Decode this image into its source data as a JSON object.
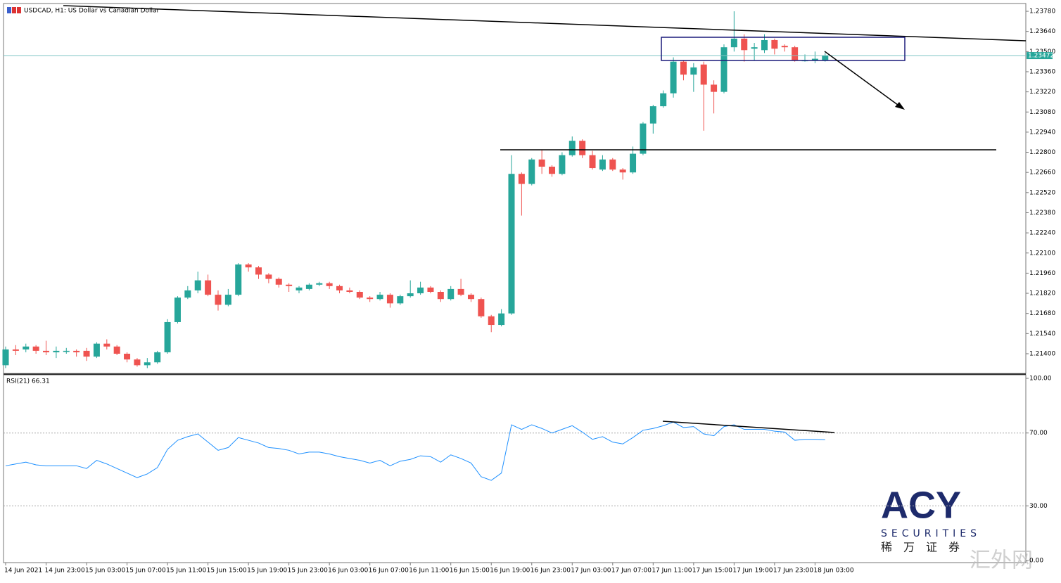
{
  "chart_data": [
    {
      "type": "candlestick",
      "title": "USDCAD, H1:  US Dollar vs Canadian Dollar",
      "categories": [
        "14 Jun 2021",
        null,
        null,
        null,
        "14 Jun 23:00",
        null,
        null,
        null,
        "15 Jun 03:00",
        null,
        null,
        null,
        "15 Jun 07:00",
        null,
        null,
        null,
        "15 Jun 11:00",
        null,
        null,
        null,
        "15 Jun 15:00",
        null,
        null,
        null,
        "15 Jun 19:00",
        null,
        null,
        null,
        "15 Jun 23:00",
        null,
        null,
        null,
        "16 Jun 03:00",
        null,
        null,
        null,
        "16 Jun 07:00",
        null,
        null,
        null,
        "16 Jun 11:00",
        null,
        null,
        null,
        "16 Jun 15:00",
        null,
        null,
        null,
        "16 Jun 19:00",
        null,
        null,
        null,
        "16 Jun 23:00",
        null,
        null,
        null,
        "17 Jun 03:00",
        null,
        null,
        null,
        "17 Jun 07:00",
        null,
        null,
        null,
        "17 Jun 11:00",
        null,
        null,
        null,
        "17 Jun 15:00",
        null,
        null,
        null,
        "17 Jun 19:00",
        null,
        null,
        null,
        "17 Jun 23:00",
        null,
        null,
        null,
        "18 Jun 03:00",
        null
      ],
      "open": [
        1.2132,
        1.2143,
        1.2143,
        1.2145,
        1.2142,
        1.2141,
        1.2142,
        1.2142,
        1.2142,
        1.2138,
        1.2147,
        1.2145,
        1.214,
        1.2136,
        1.2132,
        1.2134,
        1.2141,
        1.2162,
        1.2179,
        1.2184,
        1.2191,
        1.2181,
        1.2174,
        1.2181,
        1.2202,
        1.22,
        1.2195,
        1.2192,
        1.2188,
        1.2184,
        1.2185,
        1.2188,
        1.2189,
        1.2187,
        1.2184,
        1.2183,
        1.2179,
        1.2178,
        1.2181,
        1.2175,
        1.218,
        1.2182,
        1.2186,
        1.2183,
        1.2178,
        1.2185,
        1.2181,
        1.2178,
        1.2166,
        1.216,
        1.2168,
        1.2265,
        1.2258,
        1.2275,
        1.227,
        1.2265,
        1.2278,
        1.2288,
        1.2278,
        1.2268,
        1.2275,
        1.2268,
        1.2266,
        1.2279,
        1.23,
        1.2312,
        1.2321,
        1.2343,
        1.2334,
        1.2341,
        1.2327,
        1.2322,
        1.2353,
        1.2359,
        1.2352,
        1.2351,
        1.2358,
        1.2354,
        1.2353,
        1.2344,
        1.2344,
        1.2344
      ],
      "high": [
        1.2145,
        1.2146,
        1.2147,
        1.2146,
        1.2149,
        1.2145,
        1.2144,
        1.2143,
        1.2144,
        1.2148,
        1.215,
        1.2146,
        1.2141,
        1.2137,
        1.2137,
        1.2142,
        1.2164,
        1.218,
        1.2187,
        1.2197,
        1.2195,
        1.2184,
        1.2185,
        1.2203,
        1.2203,
        1.2201,
        1.2196,
        1.2193,
        1.2189,
        1.2187,
        1.2189,
        1.219,
        1.219,
        1.2188,
        1.2186,
        1.2184,
        1.218,
        1.2183,
        1.2182,
        1.2181,
        1.2191,
        1.219,
        1.2187,
        1.2184,
        1.2187,
        1.2192,
        1.2182,
        1.2179,
        1.2167,
        1.2171,
        1.2278,
        1.2266,
        1.2276,
        1.2282,
        1.2271,
        1.228,
        1.2291,
        1.2289,
        1.2281,
        1.2278,
        1.2276,
        1.2269,
        1.2284,
        1.2301,
        1.2313,
        1.2323,
        1.2346,
        1.2344,
        1.2342,
        1.2343,
        1.233,
        1.2355,
        1.2378,
        1.2362,
        1.2356,
        1.2362,
        1.2359,
        1.2355,
        1.2354,
        1.2348,
        1.235,
        1.2349
      ],
      "low": [
        1.213,
        1.2139,
        1.2141,
        1.214,
        1.2139,
        1.2137,
        1.214,
        1.2138,
        1.2135,
        1.2137,
        1.2143,
        1.2139,
        1.2134,
        1.2131,
        1.213,
        1.2133,
        1.214,
        1.2161,
        1.2178,
        1.2182,
        1.218,
        1.217,
        1.2173,
        1.218,
        1.2197,
        1.2192,
        1.2189,
        1.2186,
        1.2183,
        1.2182,
        1.2184,
        1.2187,
        1.2185,
        1.2182,
        1.2182,
        1.2178,
        1.2176,
        1.2177,
        1.2172,
        1.2174,
        1.2179,
        1.2181,
        1.2182,
        1.2176,
        1.2177,
        1.218,
        1.2176,
        1.2165,
        1.2155,
        1.2159,
        1.2167,
        1.2236,
        1.2257,
        1.2265,
        1.2263,
        1.2264,
        1.2277,
        1.2276,
        1.2268,
        1.2267,
        1.2267,
        1.2261,
        1.2265,
        1.2278,
        1.2293,
        1.2311,
        1.2318,
        1.233,
        1.2322,
        1.2295,
        1.2307,
        1.2321,
        1.235,
        1.2343,
        1.2344,
        1.2349,
        1.2348,
        1.235,
        1.2343,
        1.2343,
        1.2342,
        1.2343
      ],
      "close": [
        1.2143,
        1.2142,
        1.2145,
        1.2142,
        1.2141,
        1.2142,
        1.2142,
        1.2141,
        1.2138,
        1.2147,
        1.2145,
        1.214,
        1.2136,
        1.2132,
        1.2134,
        1.2141,
        1.2162,
        1.2179,
        1.2184,
        1.2191,
        1.2181,
        1.2174,
        1.2181,
        1.2202,
        1.22,
        1.2195,
        1.2192,
        1.2188,
        1.2187,
        1.2186,
        1.2188,
        1.2189,
        1.2187,
        1.2184,
        1.2183,
        1.2179,
        1.2178,
        1.2181,
        1.2175,
        1.218,
        1.2182,
        1.2186,
        1.2183,
        1.2178,
        1.2185,
        1.2181,
        1.2178,
        1.2166,
        1.216,
        1.2168,
        1.2265,
        1.2258,
        1.2275,
        1.227,
        1.2265,
        1.2278,
        1.2288,
        1.2278,
        1.2269,
        1.2275,
        1.2268,
        1.2266,
        1.2279,
        1.23,
        1.2312,
        1.2321,
        1.2343,
        1.2334,
        1.2339,
        1.2327,
        1.2322,
        1.2353,
        1.2359,
        1.2351,
        1.2353,
        1.2358,
        1.2352,
        1.2353,
        1.2344,
        1.2344,
        1.2345,
        1.2347
      ],
      "up_color": "#26a69a",
      "down_color": "#ef5350",
      "ylim": [
        1.21263,
        1.23834
      ],
      "yticks": [
        {
          "value": 1.2378,
          "label": "1.23780"
        },
        {
          "value": 1.2364,
          "label": "1.23640"
        },
        {
          "value": 1.235,
          "label": "1.23500"
        },
        {
          "value": 1.2336,
          "label": "1.23360"
        },
        {
          "value": 1.2322,
          "label": "1.23220"
        },
        {
          "value": 1.2308,
          "label": "1.23080"
        },
        {
          "value": 1.2294,
          "label": "1.22940"
        },
        {
          "value": 1.228,
          "label": "1.22800"
        },
        {
          "value": 1.2266,
          "label": "1.22660"
        },
        {
          "value": 1.2252,
          "label": "1.22520"
        },
        {
          "value": 1.2238,
          "label": "1.22380"
        },
        {
          "value": 1.2224,
          "label": "1.22240"
        },
        {
          "value": 1.221,
          "label": "1.22100"
        },
        {
          "value": 1.2196,
          "label": "1.21960"
        },
        {
          "value": 1.2182,
          "label": "1.21820"
        },
        {
          "value": 1.2168,
          "label": "1.21680"
        },
        {
          "value": 1.2154,
          "label": "1.21540"
        },
        {
          "value": 1.214,
          "label": "1.21400"
        }
      ],
      "current_price": {
        "value": 1.23472,
        "label": "1.23472"
      }
    },
    {
      "type": "line",
      "title": "RSI(21) 66.31",
      "color": "#1e90ff",
      "values": [
        52,
        53,
        54,
        52.5,
        52,
        52,
        52,
        52,
        50.5,
        55,
        53,
        50.5,
        48,
        45.5,
        47.5,
        51,
        61,
        66,
        68,
        69.5,
        65,
        60.5,
        62,
        67.5,
        66,
        64.5,
        62,
        61.5,
        60.5,
        58.5,
        59.5,
        59.5,
        58.5,
        57,
        56,
        55,
        53.5,
        55,
        52,
        54.5,
        55.5,
        57.5,
        57,
        54,
        58,
        56,
        53.5,
        46,
        44,
        48,
        74.5,
        72,
        74.5,
        72.5,
        70,
        72,
        74,
        70.5,
        66.5,
        68,
        65,
        64,
        67.5,
        71.5,
        72.5,
        74,
        76,
        73,
        73.5,
        69.5,
        68.5,
        73.5,
        74.5,
        72,
        72,
        72,
        71,
        70.5,
        66,
        66.5,
        66.5,
        66.31
      ],
      "ylim": [
        0,
        100
      ],
      "yticks": [
        {
          "value": 100,
          "label": "100.00"
        },
        {
          "value": 70,
          "label": "70.00"
        },
        {
          "value": 30,
          "label": "30.00"
        },
        {
          "value": 0,
          "label": "0.00"
        }
      ]
    }
  ],
  "logo": {
    "brand": "ACY",
    "sub": "SECURITIES",
    "cn": "稀万证券"
  },
  "watermark": "汇外网"
}
